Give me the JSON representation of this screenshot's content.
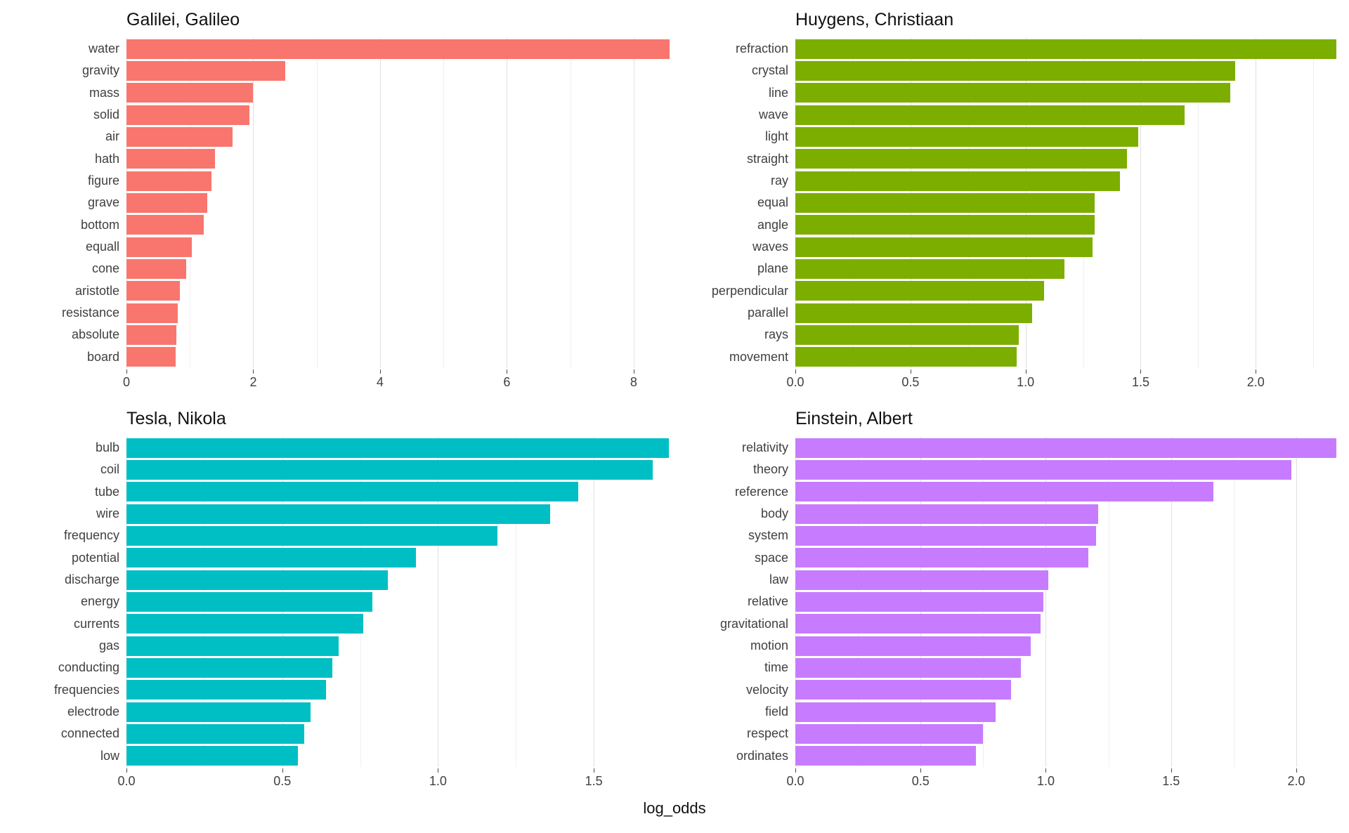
{
  "figure": {
    "xlabel": "log_odds",
    "background_color": "#FFFFFF",
    "gridline_major_color": "#E0E0E0",
    "gridline_minor_color": "#EFEFEF",
    "axis_text_color": "#404040"
  },
  "chart_data": [
    {
      "type": "bar",
      "orientation": "horizontal",
      "facet": "Galilei, Galileo",
      "color": "#F8766D",
      "xlabel": "log_odds",
      "xlim": [
        0,
        8.6
      ],
      "ticks": [
        0,
        2,
        4,
        6,
        8
      ],
      "tick_labels": [
        "0",
        "2",
        "4",
        "6",
        "8"
      ],
      "minor_ticks": [
        1,
        3,
        5,
        7
      ],
      "categories": [
        "water",
        "gravity",
        "mass",
        "solid",
        "air",
        "hath",
        "figure",
        "grave",
        "bottom",
        "equall",
        "cone",
        "aristotle",
        "resistance",
        "absolute",
        "board"
      ],
      "values": [
        8.57,
        2.5,
        1.99,
        1.94,
        1.67,
        1.4,
        1.34,
        1.28,
        1.22,
        1.03,
        0.94,
        0.84,
        0.81,
        0.79,
        0.78
      ]
    },
    {
      "type": "bar",
      "orientation": "horizontal",
      "facet": "Huygens, Christiaan",
      "color": "#7CAE00",
      "xlabel": "log_odds",
      "xlim": [
        0,
        2.35
      ],
      "ticks": [
        0,
        0.5,
        1.0,
        1.5,
        2.0
      ],
      "tick_labels": [
        "0.0",
        "0.5",
        "1.0",
        "1.5",
        "2.0"
      ],
      "minor_ticks": [
        0.25,
        0.75,
        1.25,
        1.75,
        2.25
      ],
      "categories": [
        "refraction",
        "crystal",
        "line",
        "wave",
        "light",
        "straight",
        "ray",
        "equal",
        "angle",
        "waves",
        "plane",
        "perpendicular",
        "parallel",
        "rays",
        "movement"
      ],
      "values": [
        2.35,
        1.91,
        1.89,
        1.69,
        1.49,
        1.44,
        1.41,
        1.3,
        1.3,
        1.29,
        1.17,
        1.08,
        1.03,
        0.97,
        0.96
      ]
    },
    {
      "type": "bar",
      "orientation": "horizontal",
      "facet": "Tesla, Nikola",
      "color": "#00BFC4",
      "xlabel": "log_odds",
      "xlim": [
        0,
        1.75
      ],
      "ticks": [
        0,
        0.5,
        1.0,
        1.5
      ],
      "tick_labels": [
        "0.0",
        "0.5",
        "1.0",
        "1.5"
      ],
      "minor_ticks": [
        0.25,
        0.75,
        1.25
      ],
      "categories": [
        "bulb",
        "coil",
        "tube",
        "wire",
        "frequency",
        "potential",
        "discharge",
        "energy",
        "currents",
        "gas",
        "conducting",
        "frequencies",
        "electrode",
        "connected",
        "low"
      ],
      "values": [
        1.74,
        1.69,
        1.45,
        1.36,
        1.19,
        0.93,
        0.84,
        0.79,
        0.76,
        0.68,
        0.66,
        0.64,
        0.59,
        0.57,
        0.55
      ]
    },
    {
      "type": "bar",
      "orientation": "horizontal",
      "facet": "Einstein, Albert",
      "color": "#C77CFF",
      "xlabel": "log_odds",
      "xlim": [
        0,
        2.16
      ],
      "ticks": [
        0,
        0.5,
        1.0,
        1.5,
        2.0
      ],
      "tick_labels": [
        "0.0",
        "0.5",
        "1.0",
        "1.5",
        "2.0"
      ],
      "minor_ticks": [
        0.25,
        0.75,
        1.25,
        1.75
      ],
      "categories": [
        "relativity",
        "theory",
        "reference",
        "body",
        "system",
        "space",
        "law",
        "relative",
        "gravitational",
        "motion",
        "time",
        "velocity",
        "field",
        "respect",
        "ordinates"
      ],
      "values": [
        2.16,
        1.98,
        1.67,
        1.21,
        1.2,
        1.17,
        1.01,
        0.99,
        0.98,
        0.94,
        0.9,
        0.86,
        0.8,
        0.75,
        0.72
      ]
    }
  ]
}
